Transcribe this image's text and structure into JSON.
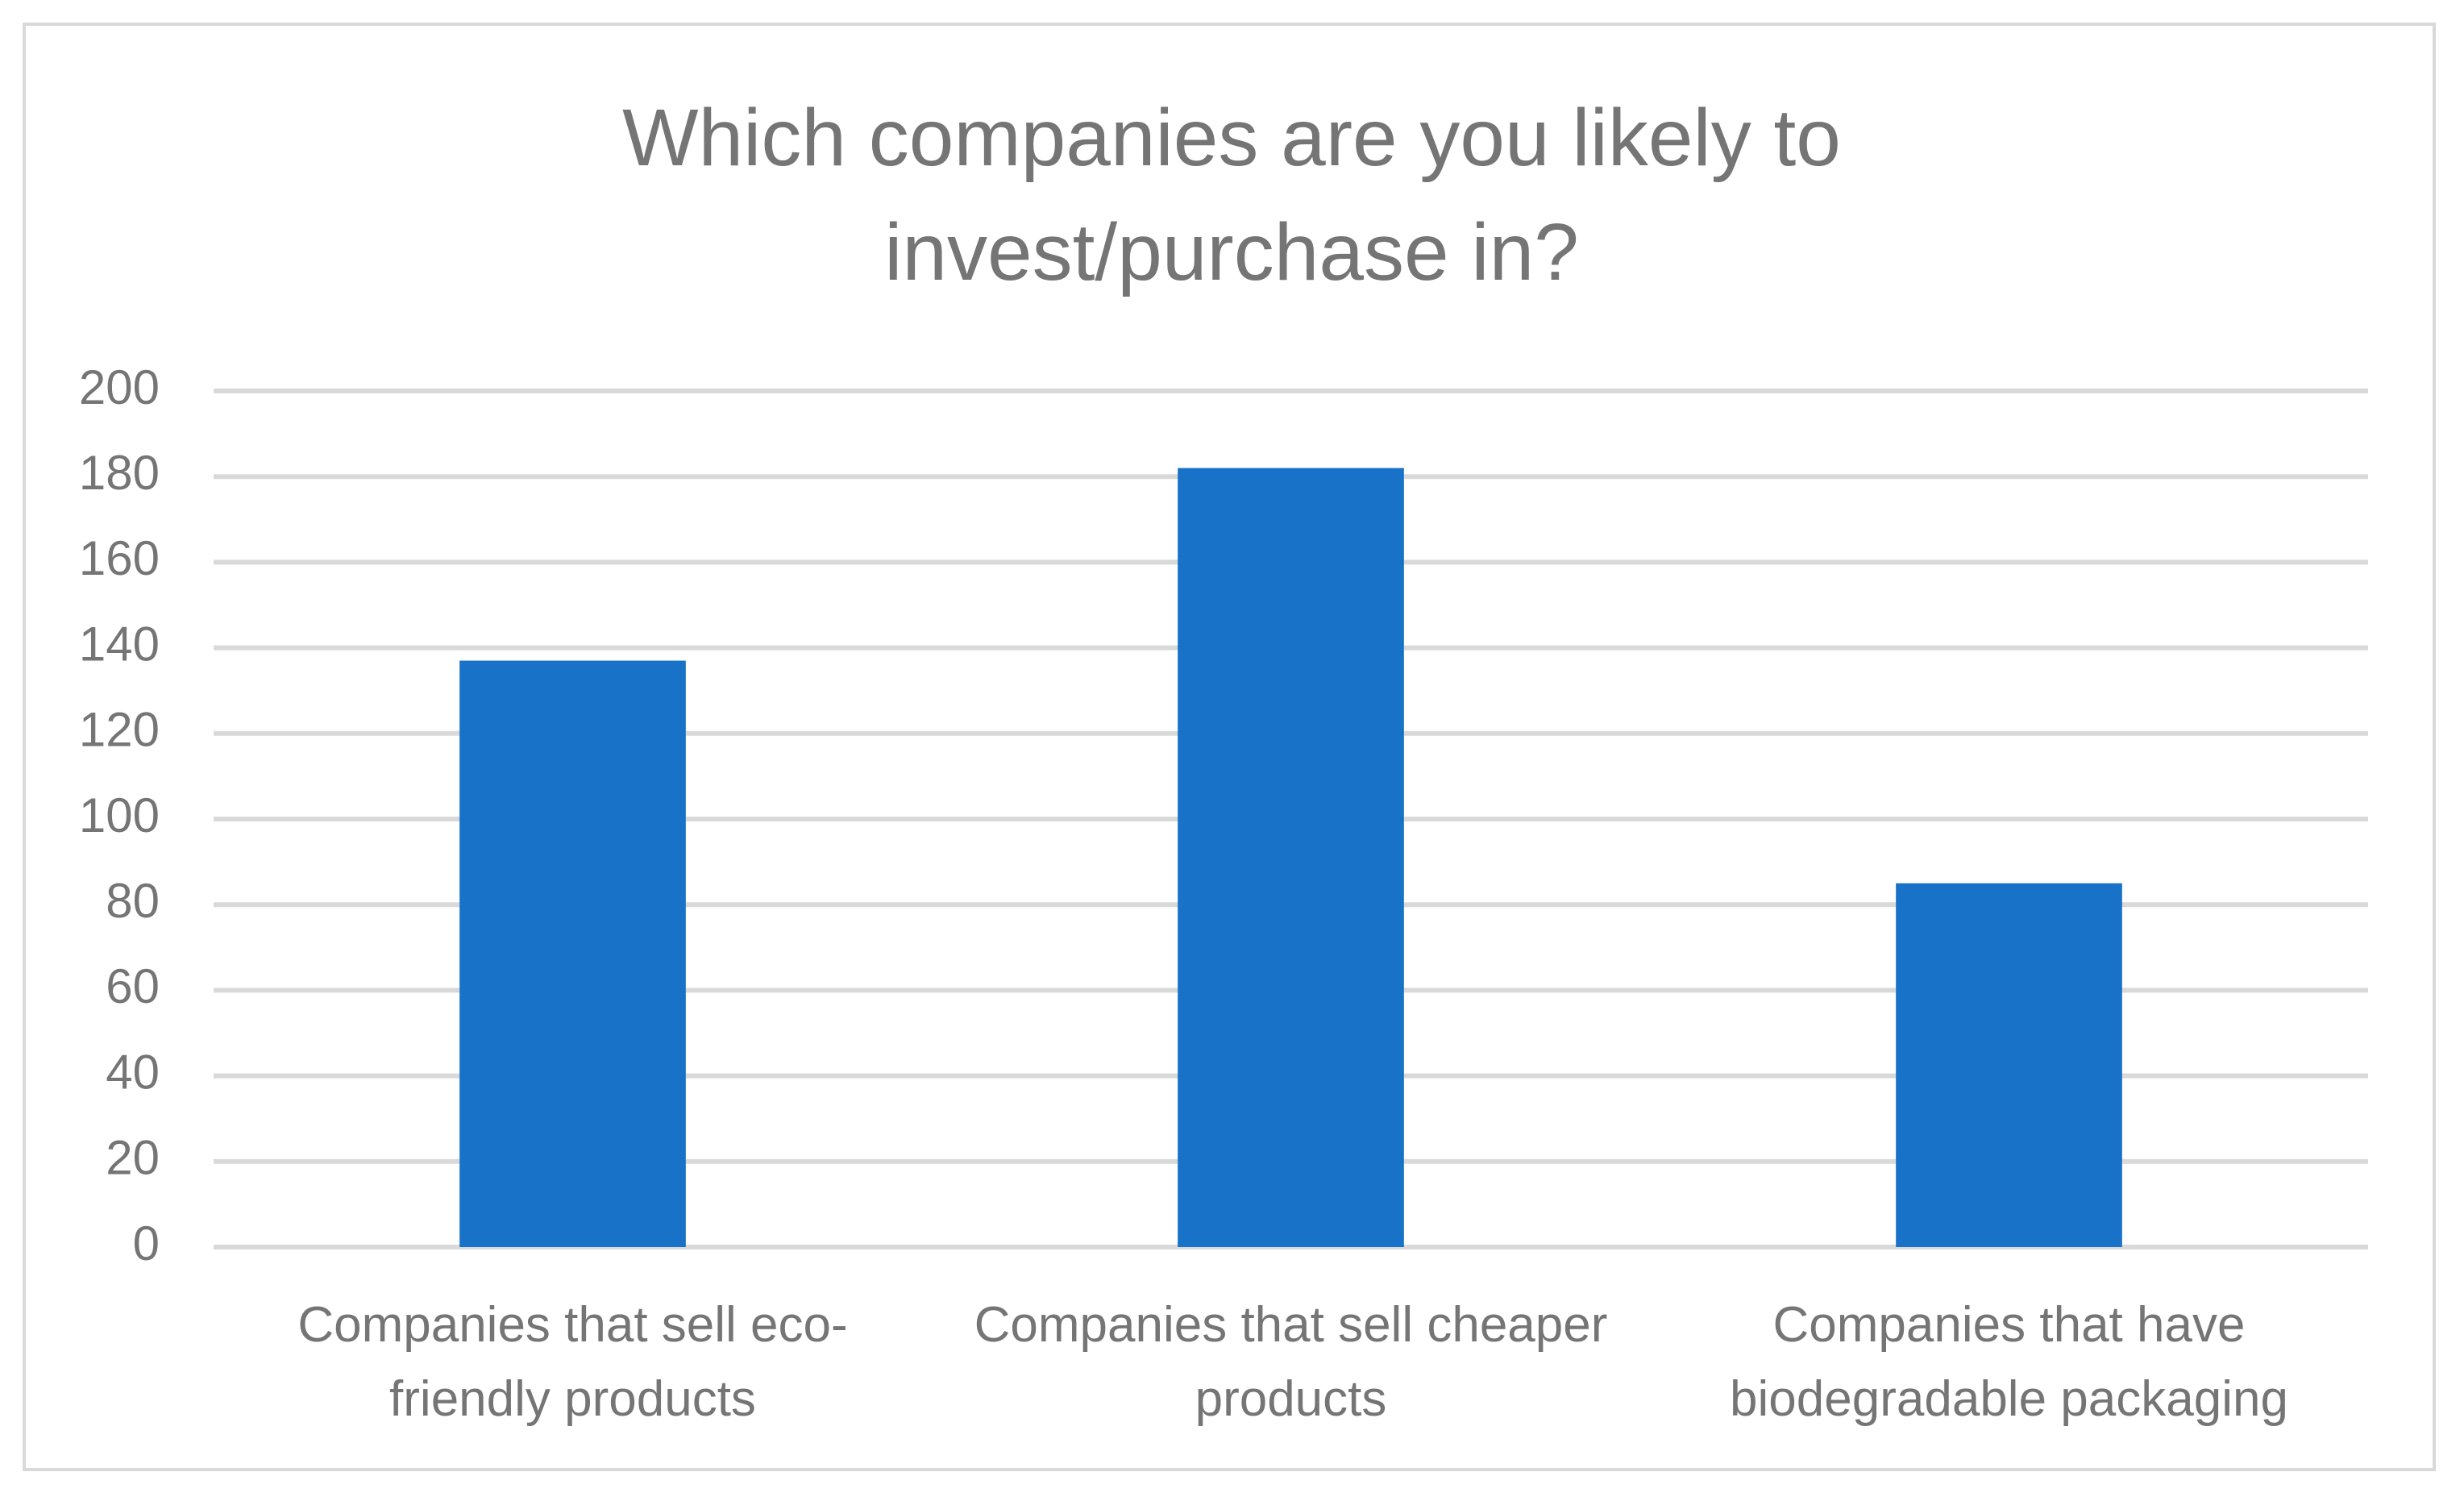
{
  "chart_data": {
    "type": "bar",
    "title_lines": [
      "Which companies are you likely to",
      "invest/purchase in?"
    ],
    "categories": [
      [
        "Companies that sell eco-",
        "friendly products"
      ],
      [
        "Companies that sell cheaper",
        "products"
      ],
      [
        "Companies that have",
        "biodegradable packaging"
      ]
    ],
    "values": [
      137,
      182,
      85
    ],
    "ylim": [
      0,
      200
    ],
    "yticks": [
      0,
      20,
      40,
      60,
      80,
      100,
      120,
      140,
      160,
      180,
      200
    ],
    "grid": true,
    "legend": "none",
    "bar_color": "#1873C8",
    "grid_color": "#D9D9D9",
    "text_color": "#757575"
  }
}
